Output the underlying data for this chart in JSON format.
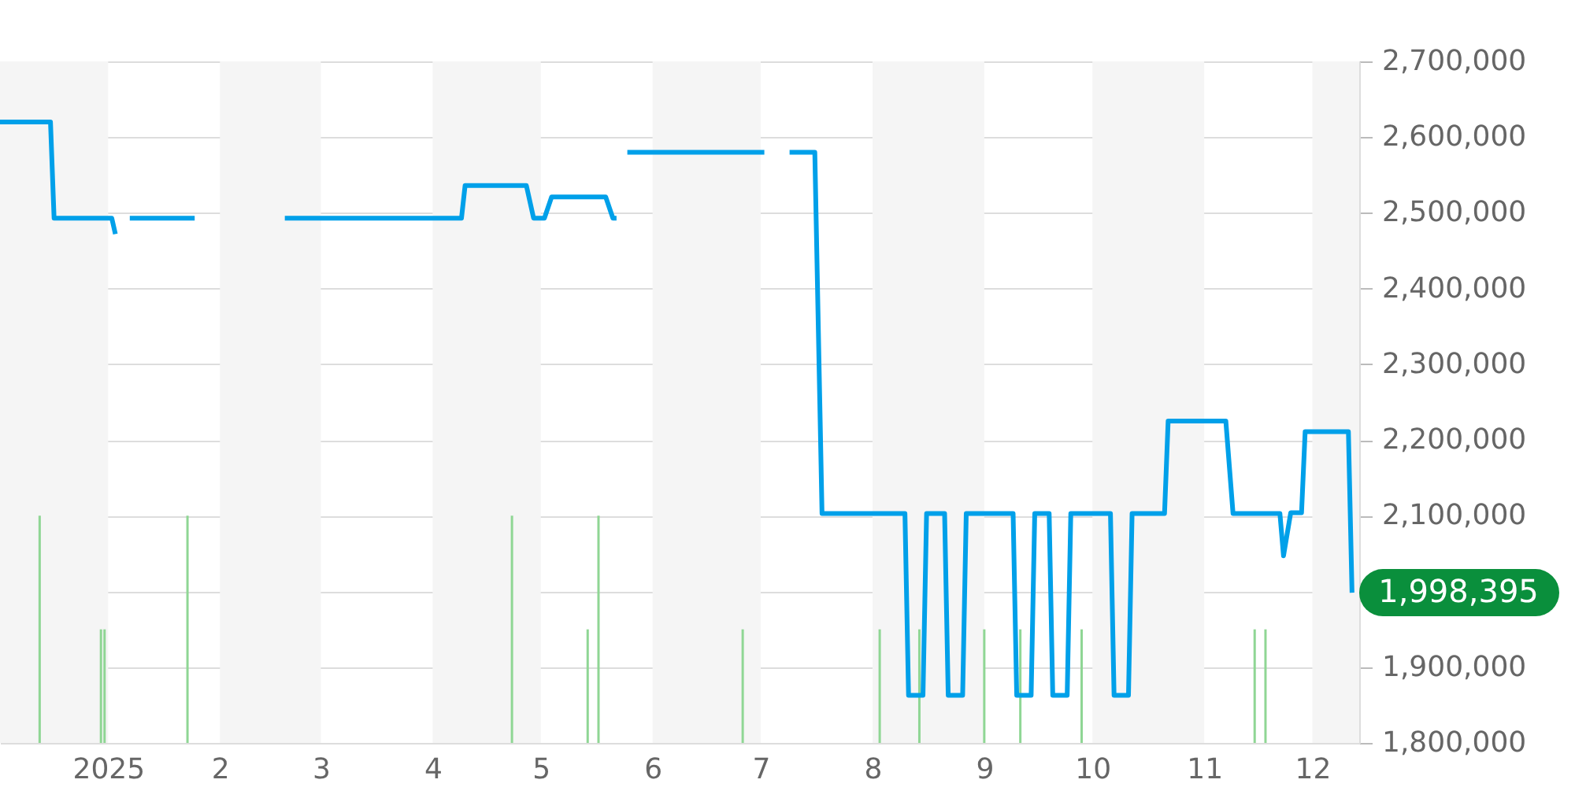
{
  "chart_data": {
    "type": "line",
    "xlim": [
      "2024-12-02",
      "2025-12-14"
    ],
    "xticks": [
      {
        "value": "2025-01-01",
        "label": "2025"
      },
      {
        "value": "2025-02-01",
        "label": "2"
      },
      {
        "value": "2025-03-01",
        "label": "3"
      },
      {
        "value": "2025-04-01",
        "label": "4"
      },
      {
        "value": "2025-05-01",
        "label": "5"
      },
      {
        "value": "2025-06-01",
        "label": "6"
      },
      {
        "value": "2025-07-01",
        "label": "7"
      },
      {
        "value": "2025-08-01",
        "label": "8"
      },
      {
        "value": "2025-09-01",
        "label": "9"
      },
      {
        "value": "2025-10-01",
        "label": "10"
      },
      {
        "value": "2025-11-01",
        "label": "11"
      },
      {
        "value": "2025-12-01",
        "label": "12"
      }
    ],
    "ylim": [
      1800000,
      2700000
    ],
    "yticks": [
      {
        "value": 1800000,
        "label": "1,800,000"
      },
      {
        "value": 1900000,
        "label": "1,900,000"
      },
      {
        "value": 2000000,
        "label": null
      },
      {
        "value": 2100000,
        "label": "2,100,000"
      },
      {
        "value": 2200000,
        "label": "2,200,000"
      },
      {
        "value": 2300000,
        "label": "2,300,000"
      },
      {
        "value": 2400000,
        "label": "2,400,000"
      },
      {
        "value": 2500000,
        "label": "2,500,000"
      },
      {
        "value": 2600000,
        "label": "2,600,000"
      },
      {
        "value": 2700000,
        "label": "2,700,000"
      }
    ],
    "grid": "y",
    "bands": [
      {
        "axis": "x",
        "from": "2024-12-02",
        "to": "2025-01-01",
        "color": "#f5f5f5"
      },
      {
        "axis": "x",
        "from": "2025-02-01",
        "to": "2025-03-01",
        "color": "#f5f5f5"
      },
      {
        "axis": "x",
        "from": "2025-04-01",
        "to": "2025-05-01",
        "color": "#f5f5f5"
      },
      {
        "axis": "x",
        "from": "2025-06-01",
        "to": "2025-07-01",
        "color": "#f5f5f5"
      },
      {
        "axis": "x",
        "from": "2025-08-01",
        "to": "2025-09-01",
        "color": "#f5f5f5"
      },
      {
        "axis": "x",
        "from": "2025-10-01",
        "to": "2025-11-01",
        "color": "#f5f5f5"
      },
      {
        "axis": "x",
        "from": "2025-12-01",
        "to": "2025-12-14",
        "color": "#f5f5f5"
      }
    ],
    "series": [
      {
        "type": "bar",
        "color": "#8fd694",
        "x": [
          "2024-12-13",
          "2024-12-30",
          "2024-12-31",
          "2025-01-23",
          "2025-04-23",
          "2025-05-14",
          "2025-05-17",
          "2025-06-26",
          "2025-08-03",
          "2025-08-14",
          "2025-09-01",
          "2025-09-11",
          "2025-09-28",
          "2025-11-15",
          "2025-11-18"
        ],
        "values": [
          2100000,
          1950000,
          1950000,
          2100000,
          2100000,
          1950000,
          2100000,
          1950000,
          1950000,
          1950000,
          1950000,
          1950000,
          1950000,
          1950000,
          1950000
        ]
      },
      {
        "type": "line",
        "color": "#00a0e9",
        "x": [
          "2024-12-02",
          "2024-12-16",
          "2024-12-17",
          "2025-01-02",
          "2025-01-03",
          "2025-01-05",
          "2025-01-07",
          "2025-01-25",
          "2025-02-05",
          "2025-02-19",
          "2025-04-09",
          "2025-04-10",
          "2025-04-27",
          "2025-04-29",
          "2025-05-02",
          "2025-05-04",
          "2025-05-19",
          "2025-05-21",
          "2025-05-22",
          "2025-05-23",
          "2025-05-25",
          "2025-07-02",
          "2025-07-05",
          "2025-07-09",
          "2025-07-16",
          "2025-07-18",
          "2025-08-10",
          "2025-08-11",
          "2025-08-15",
          "2025-08-16",
          "2025-08-21",
          "2025-08-22",
          "2025-08-26",
          "2025-08-27",
          "2025-09-09",
          "2025-09-10",
          "2025-09-14",
          "2025-09-15",
          "2025-09-19",
          "2025-09-20",
          "2025-09-24",
          "2025-09-25",
          "2025-10-06",
          "2025-10-07",
          "2025-10-11",
          "2025-10-12",
          "2025-10-21",
          "2025-10-22",
          "2025-11-07",
          "2025-11-09",
          "2025-11-22",
          "2025-11-23",
          "2025-11-25",
          "2025-11-28",
          "2025-11-29",
          "2025-12-11",
          "2025-12-12"
        ],
        "values": [
          2620000,
          2620000,
          2493000,
          2493000,
          2472000,
          null,
          2493000,
          2493000,
          null,
          2493000,
          2493000,
          2536000,
          2536000,
          2493000,
          2493000,
          2521000,
          2521000,
          2493000,
          2493000,
          null,
          2580000,
          2580000,
          null,
          2580000,
          2580000,
          2103000,
          2103000,
          1863000,
          1863000,
          2103000,
          2103000,
          1863000,
          1863000,
          2103000,
          2103000,
          1863000,
          1863000,
          2103000,
          2103000,
          1863000,
          1863000,
          2103000,
          2103000,
          1863000,
          1863000,
          2103000,
          2103000,
          2225000,
          2225000,
          2103000,
          2103000,
          2047000,
          2104000,
          2104000,
          2211000,
          2211000,
          1998395
        ]
      }
    ],
    "annotations": [
      {
        "text": "1,998,395",
        "x": "2025-12-12",
        "y": 1998395
      }
    ]
  }
}
